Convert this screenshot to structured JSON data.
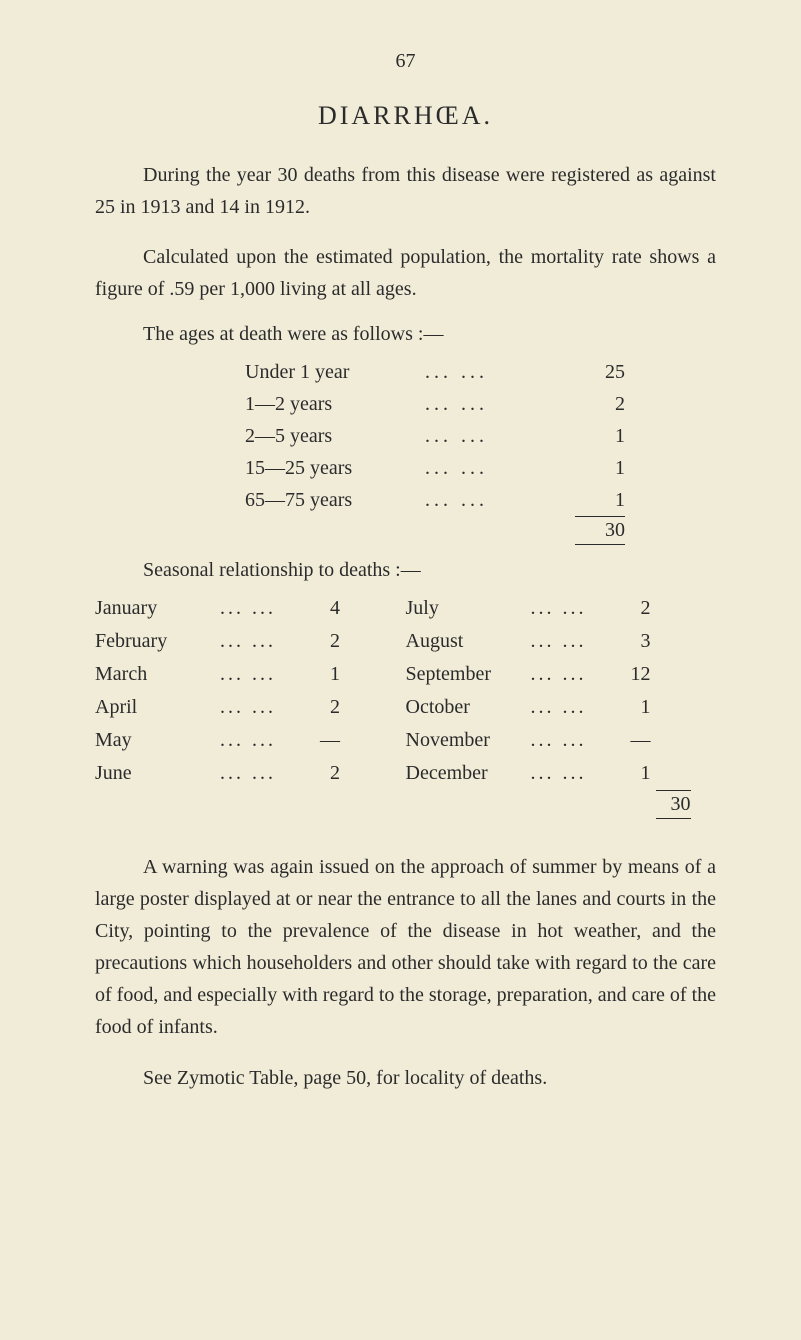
{
  "page_number": "67",
  "title": "DIARRHŒA.",
  "paragraphs": {
    "p1": "During the year 30 deaths from this disease were registered as against 25 in 1913 and 14 in 1912.",
    "p2": "Calculated upon the estimated population, the mortality rate shows a figure of .59 per 1,000 living at all ages.",
    "ages_head": "The ages at death were as follows :—",
    "seasonal_head": "Seasonal relationship to deaths :—",
    "p3": "A warning was again issued on the approach of summer by means of a large poster displayed at or near the entrance to all the lanes and courts in the City, pointing to the prevalence of the disease in hot weather, and the precautions which householders and other should take with regard to the care of food, and especially with regard to the storage, preparation, and care of the food of infants.",
    "see": "See Zymotic Table, page 50, for locality of deaths."
  },
  "age_table": {
    "rows": [
      {
        "label": "Under 1 year",
        "value": "25"
      },
      {
        "label": "1—2 years",
        "value": "2"
      },
      {
        "label": "2—5 years",
        "value": "1"
      },
      {
        "label": "15—25 years",
        "value": "1"
      },
      {
        "label": "65—75 years",
        "value": "1"
      }
    ],
    "total": "30"
  },
  "months_table": {
    "left": [
      {
        "label": "January",
        "dots": "...   ...",
        "value": "4"
      },
      {
        "label": "February",
        "dots": "...   ...",
        "value": "2"
      },
      {
        "label": "March",
        "dots": "...   ...",
        "value": "1"
      },
      {
        "label": "April",
        "dots": "...   ...",
        "value": "2"
      },
      {
        "label": "May",
        "dots": "...   ...",
        "value": "—"
      },
      {
        "label": "June",
        "dots": "...   ...",
        "value": "2"
      }
    ],
    "right": [
      {
        "label": "July",
        "dots": "...   ...",
        "value": "2"
      },
      {
        "label": "August",
        "dots": "...   ...",
        "value": "3"
      },
      {
        "label": "September",
        "dots": "...   ...",
        "value": "12"
      },
      {
        "label": "October",
        "dots": "...   ...",
        "value": "1"
      },
      {
        "label": "November",
        "dots": "...   ...",
        "value": "—"
      },
      {
        "label": "December",
        "dots": "...   ...",
        "value": "1"
      }
    ],
    "total": "30"
  },
  "dots": "...        ...",
  "colors": {
    "background": "#f0ecd8",
    "text": "#2b2b2b",
    "rule": "#2b2b2b"
  }
}
